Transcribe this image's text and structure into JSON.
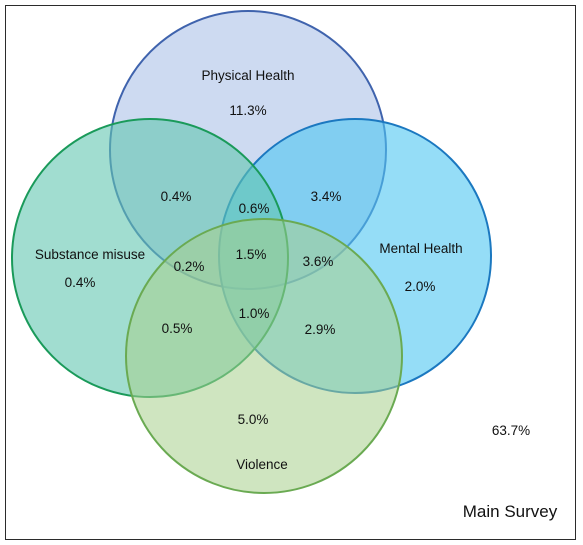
{
  "caption": "Main Survey",
  "outside_value": "63.7%",
  "sets": {
    "physical_health": {
      "label": "Physical Health",
      "fill": "#bccdec",
      "stroke": "#3f63ad"
    },
    "mental_health": {
      "label": "Mental Health",
      "fill": "#4fc6f2",
      "stroke": "#1b78c0"
    },
    "substance_misuse": {
      "label": "Substance misuse",
      "fill": "#63c7b0",
      "stroke": "#1a9a5a"
    },
    "violence": {
      "label": "Violence",
      "fill": "#a8d08d",
      "stroke": "#6aaa52"
    }
  },
  "regions": {
    "physical_only": "11.3%",
    "mental_only": "2.0%",
    "substance_only": "0.4%",
    "violence_only": "5.0%",
    "physical_substance": "0.4%",
    "physical_mental": "3.4%",
    "physical_mental_substance": "0.6%",
    "all_four": "1.5%",
    "physical_substance_violence": "0.2%",
    "physical_mental_violence": "3.6%",
    "substance_violence": "0.5%",
    "mental_substance_violence": "1.0%",
    "mental_violence": "2.9%"
  }
}
